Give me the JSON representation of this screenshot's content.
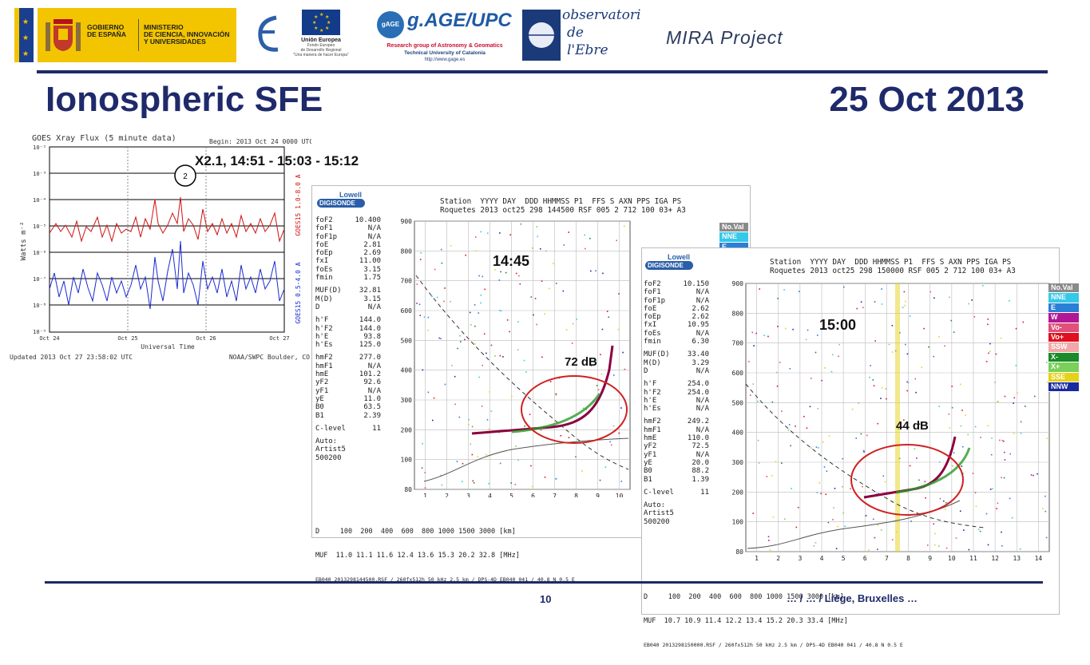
{
  "header": {
    "gobierno": [
      "GOBIERNO",
      "DE ESPAÑA"
    ],
    "ministerio": [
      "MINISTERIO",
      "DE CIENCIA, INNOVACIÓN",
      "Y UNIVERSIDADES"
    ],
    "eu": {
      "name": "Unión Europea",
      "sub": [
        "Fondo Europeo",
        "de Desarrollo Regional",
        "\"Una manera de hacer Europa\""
      ]
    },
    "gage": {
      "circle": "gAGE",
      "title": "g.AGE/UPC",
      "line1": "Research group of Astronomy & Geomatics",
      "line2": "Technical University of Catalonia",
      "line3": "http://www.gage.es"
    },
    "observatori": [
      "observatori",
      "de",
      "l'Ebre"
    ],
    "project": "MIRA Project"
  },
  "slide": {
    "title": "Ionospheric SFE",
    "date": "25 Oct 2013",
    "page_number": "10",
    "footnote": "… / … / Liège, Bruxelles …"
  },
  "goes": {
    "title": "GOES Xray Flux (5 minute data)",
    "begin": "Begin: 2013 Oct 24 0000 UTC",
    "flare_label": "X2.1, 14:51 - 15:03 - 15:12",
    "marker": "2",
    "ylabel": "Watts m⁻²",
    "yticks": [
      "10⁻²",
      "10⁻³",
      "10⁻⁴",
      "10⁻⁵",
      "10⁻⁶",
      "10⁻⁷",
      "10⁻⁸",
      "10⁻⁹"
    ],
    "xticks": [
      "Oct 24",
      "Oct 25",
      "Oct 26",
      "Oct 27"
    ],
    "xlabel": "Universal Time",
    "right_label_red": "GOES15 1.0-8.0 A",
    "right_label_blue": "GOES15 0.5-4.0 A",
    "updated": "Updated 2013 Oct 27 23:58:02 UTC",
    "credit": "NOAA/SWPC Boulder, CO"
  },
  "iono1": {
    "brand": [
      "Lowell",
      "DIGISONDE"
    ],
    "header": "Station  YYYY DAY  DDD HHMMSS P1  FFS S AXN PPS IGA PS\nRoquetes 2013 oct25 298 144500 RSF 005 2 712 100 03+ A3",
    "time": "14:45",
    "db": "72 dB",
    "params": [
      [
        "foF2",
        "10.400"
      ],
      [
        "foF1",
        "N/A"
      ],
      [
        "foF1p",
        "N/A"
      ],
      [
        "foE",
        "2.81"
      ],
      [
        "foEp",
        "2.69"
      ],
      [
        "fxI",
        "11.00"
      ],
      [
        "foEs",
        "3.15"
      ],
      [
        "fmin",
        "1.75"
      ],
      [
        "MUF(D)",
        "32.81"
      ],
      [
        "M(D)",
        "3.15"
      ],
      [
        "D",
        "N/A"
      ],
      [
        "h'F",
        "144.0"
      ],
      [
        "h'F2",
        "144.0"
      ],
      [
        "h'E",
        "93.8"
      ],
      [
        "h'Es",
        "125.0"
      ],
      [
        "hmF2",
        "277.0"
      ],
      [
        "hmF1",
        "N/A"
      ],
      [
        "hmE",
        "101.2"
      ],
      [
        "yF2",
        "92.6"
      ],
      [
        "yF1",
        "N/A"
      ],
      [
        "yE",
        "11.0"
      ],
      [
        "B0",
        "63.5"
      ],
      [
        "B1",
        "2.39"
      ],
      [
        "C-level",
        "11"
      ]
    ],
    "auto": [
      "Auto:",
      "Artist5",
      "500200"
    ],
    "yticks": [
      "900",
      "800",
      "700",
      "600",
      "500",
      "400",
      "300",
      "200",
      "100",
      "80"
    ],
    "xticks": [
      "1",
      "2",
      "3",
      "4",
      "5",
      "6",
      "7",
      "8",
      "9",
      "10"
    ],
    "legend": [
      "No.Val",
      "NNE",
      "E"
    ],
    "bottom1": "D     100  200  400  600  800 1000 1500 3000 [km]",
    "bottom2": "MUF  11.0 11.1 11.6 12.4 13.6 15.3 20.2 32.8 [MHz]",
    "bottom3": "EB040 2013298144500.RSF / 260fx512h 50 kHz 2.5 km / DPS-4D EB040 041 / 40.8 N 0.5 E"
  },
  "iono2": {
    "brand": [
      "Lowell",
      "DIGISONDE"
    ],
    "header": "Station  YYYY DAY  DDD HHMMSS P1  FFS S AXN PPS IGA PS\nRoquetes 2013 oct25 298 150000 RSF 005 2 712 100 03+ A3",
    "time": "15:00",
    "db": "44 dB",
    "params": [
      [
        "foF2",
        "10.150"
      ],
      [
        "foF1",
        "N/A"
      ],
      [
        "foF1p",
        "N/A"
      ],
      [
        "foE",
        "2.62"
      ],
      [
        "foEp",
        "2.62"
      ],
      [
        "fxI",
        "10.95"
      ],
      [
        "foEs",
        "N/A"
      ],
      [
        "fmin",
        "6.30"
      ],
      [
        "MUF(D)",
        "33.40"
      ],
      [
        "M(D)",
        "3.29"
      ],
      [
        "D",
        "N/A"
      ],
      [
        "h'F",
        "254.0"
      ],
      [
        "h'F2",
        "254.0"
      ],
      [
        "h'E",
        "N/A"
      ],
      [
        "h'Es",
        "N/A"
      ],
      [
        "hmF2",
        "249.2"
      ],
      [
        "hmF1",
        "N/A"
      ],
      [
        "hmE",
        "110.0"
      ],
      [
        "yF2",
        "72.5"
      ],
      [
        "yF1",
        "N/A"
      ],
      [
        "yE",
        "20.0"
      ],
      [
        "B0",
        "88.2"
      ],
      [
        "B1",
        "1.39"
      ],
      [
        "C-level",
        "11"
      ]
    ],
    "auto": [
      "Auto:",
      "Artist5",
      "500200"
    ],
    "yticks": [
      "900",
      "800",
      "700",
      "600",
      "500",
      "400",
      "300",
      "200",
      "100",
      "80"
    ],
    "xticks": [
      "1",
      "2",
      "3",
      "4",
      "5",
      "6",
      "7",
      "8",
      "9",
      "10",
      "11",
      "12",
      "13",
      "14"
    ],
    "legend": [
      {
        "label": "No.Val",
        "color": "#8a8a8a"
      },
      {
        "label": "NNE",
        "color": "#35c8e8"
      },
      {
        "label": "E",
        "color": "#2a7fd6"
      },
      {
        "label": "W",
        "color": "#b01896"
      },
      {
        "label": "Vo-",
        "color": "#e0507a"
      },
      {
        "label": "Vo+",
        "color": "#e01020"
      },
      {
        "label": "SSW",
        "color": "#f0a8a8"
      },
      {
        "label": "X-",
        "color": "#1a8a2a"
      },
      {
        "label": "X+",
        "color": "#7ad05a"
      },
      {
        "label": "SSE",
        "color": "#e6d21a"
      },
      {
        "label": "NNW",
        "color": "#1a2aa0"
      }
    ],
    "bottom1": "D     100  200  400  600  800 1000 1500 3000 [km]",
    "bottom2": "MUF  10.7 10.9 11.4 12.2 13.4 15.2 20.3 33.4 [MHz]",
    "bottom3": "EB040 2013298150000.RSF / 260fx512h 50 kHz 2.5 km / DPS-4D EB040 041 / 40.8 N 0.5 E"
  }
}
